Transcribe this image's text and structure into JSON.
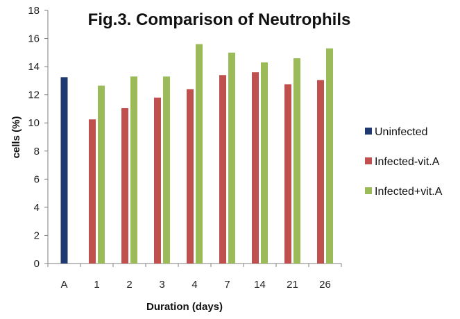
{
  "chart_data": {
    "type": "bar",
    "title": "Fig.3. Comparison of Neutrophils",
    "xlabel": "Duration (days)",
    "ylabel": "cells (%)",
    "ylim": [
      0,
      18
    ],
    "yticks": [
      0,
      2,
      4,
      6,
      8,
      10,
      12,
      14,
      16,
      18
    ],
    "grid": false,
    "legend_position": "right",
    "categories": [
      "A",
      "1",
      "2",
      "3",
      "4",
      "7",
      "14",
      "21",
      "26"
    ],
    "series": [
      {
        "name": "Uninfected",
        "color": "#1F3A6E",
        "values": [
          13.25,
          null,
          null,
          null,
          null,
          null,
          null,
          null,
          null
        ]
      },
      {
        "name": "Infected-vit.A",
        "color": "#C0504D",
        "values": [
          null,
          10.25,
          11.05,
          11.8,
          12.4,
          13.4,
          13.6,
          12.75,
          13.05
        ]
      },
      {
        "name": "Infected+vit.A",
        "color": "#9BBB59",
        "values": [
          null,
          12.65,
          13.3,
          13.3,
          15.6,
          15.0,
          14.3,
          14.6,
          15.3
        ]
      }
    ]
  }
}
